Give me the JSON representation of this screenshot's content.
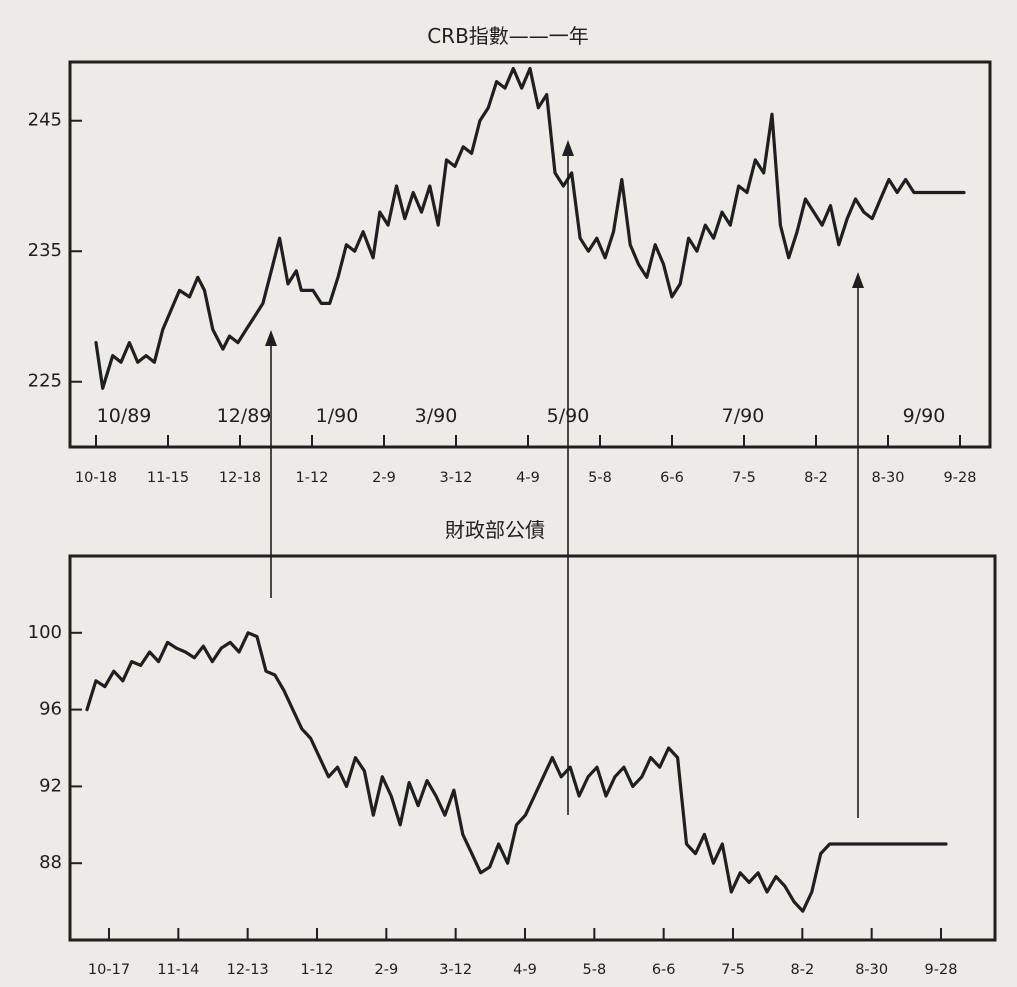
{
  "chart_data": [
    {
      "type": "line",
      "title": "CRB指數——一年",
      "yticks": [
        225,
        235,
        245
      ],
      "ylim": [
        220,
        249.5
      ],
      "xticks": [
        "10-18",
        "11-15",
        "12-18",
        "1-12",
        "2-9",
        "3-12",
        "4-9",
        "5-8",
        "6-6",
        "7-5",
        "8-2",
        "8-30",
        "9-28"
      ],
      "month_labels": [
        "10/89",
        "12/89",
        "1/90",
        "3/90",
        "5/90",
        "7/90",
        "9/90"
      ],
      "grid": false,
      "series": [
        {
          "x": [
            0.0,
            0.4,
            1.0,
            1.5,
            2.0,
            2.5,
            3.0,
            3.5,
            4.0,
            4.5,
            5.0,
            5.6,
            6.1,
            6.5,
            7.0,
            7.6,
            8.0,
            8.5,
            9.0,
            9.5,
            10.0,
            10.5,
            11.0,
            11.5,
            12.0,
            12.3,
            13.0,
            13.5,
            14.0,
            14.5,
            15.0,
            15.5,
            16.0,
            16.6,
            17.0,
            17.5,
            18.0,
            18.5,
            19.0,
            19.5,
            20.0,
            20.5,
            21.0,
            21.5,
            22.0,
            22.5,
            23.0,
            23.5,
            24.0,
            24.5,
            25.0,
            25.5,
            26.0,
            26.5,
            27.0,
            27.5,
            28.0,
            28.5,
            29.0,
            29.5,
            30.0,
            30.5,
            31.0,
            31.5,
            32.0,
            32.5,
            33.0,
            33.5,
            34.0,
            34.5,
            35.0,
            35.5,
            36.0,
            36.5,
            37.0,
            37.5,
            38.0,
            38.5,
            39.0,
            39.5,
            40.0,
            40.5,
            41.0,
            41.5,
            42.0,
            42.5,
            43.0,
            43.5,
            44.0,
            44.5,
            45.0,
            45.5,
            46.0,
            46.5,
            47.0,
            47.5,
            48.0,
            48.5,
            49.0,
            49.5,
            50.0,
            50.5,
            51.0,
            51.5,
            52.0
          ],
          "values": [
            228,
            224.5,
            227,
            226.5,
            228,
            226.5,
            227,
            226.5,
            229,
            230.5,
            232,
            231.5,
            233,
            232,
            229,
            227.5,
            228.5,
            228,
            229,
            230,
            231,
            233.5,
            236,
            232.5,
            233.5,
            232,
            232,
            231,
            231,
            233,
            235.5,
            235,
            236.5,
            234.5,
            238,
            237,
            240,
            237.5,
            239.5,
            238,
            240,
            237,
            242,
            241.5,
            243,
            242.5,
            245,
            246,
            248,
            247.5,
            249,
            247.5,
            249,
            246,
            247,
            241,
            240,
            241,
            236,
            235,
            236,
            234.5,
            236.5,
            240.5,
            235.5,
            234,
            233,
            235.5,
            234,
            231.5,
            232.5,
            236,
            235,
            237,
            236,
            238,
            237,
            240,
            239.5,
            242,
            241,
            245.5,
            237,
            234.5,
            236.5,
            239,
            238,
            237,
            238.5,
            235.5,
            237.5,
            239,
            238,
            237.5,
            239,
            240.5,
            239.5,
            240.5,
            239.5,
            239.5,
            239.5,
            239.5,
            239.5,
            239.5,
            239.5
          ]
        }
      ]
    },
    {
      "type": "line",
      "title": "財政部公債",
      "yticks": [
        88,
        92,
        96,
        100
      ],
      "ylim": [
        84,
        104
      ],
      "xticks": [
        "10-17",
        "11-14",
        "12-13",
        "1-12",
        "2-9",
        "3-12",
        "4-9",
        "5-8",
        "6-6",
        "7-5",
        "8-2",
        "8-30",
        "9-28"
      ],
      "grid": false,
      "series": [
        {
          "x": [
            0.0,
            0.5,
            1.0,
            1.5,
            2.0,
            2.5,
            3.0,
            3.5,
            4.0,
            4.5,
            5.0,
            5.5,
            6.0,
            6.5,
            7.0,
            7.5,
            8.0,
            8.5,
            9.0,
            9.5,
            10.0,
            10.5,
            11.0,
            11.5,
            12.0,
            12.5,
            13.0,
            13.5,
            14.0,
            14.5,
            15.0,
            15.5,
            16.0,
            16.5,
            17.0,
            17.5,
            18.0,
            18.5,
            19.0,
            19.5,
            20.0,
            20.5,
            21.0,
            21.5,
            22.0,
            22.5,
            23.0,
            23.5,
            24.0,
            24.5,
            25.0,
            25.5,
            26.0,
            26.5,
            27.0,
            27.5,
            28.0,
            28.5,
            29.0,
            29.5,
            30.0,
            30.5,
            31.0,
            31.5,
            32.0,
            32.5,
            33.0,
            33.5,
            34.0,
            34.5,
            35.0,
            35.5,
            36.0,
            36.5,
            37.0,
            37.5,
            38.0,
            38.5,
            39.0,
            39.5,
            40.0,
            40.5,
            41.0,
            41.5,
            42.0,
            42.5,
            43.0,
            43.5,
            44.0,
            44.5,
            45.0,
            45.5,
            46.0,
            46.5,
            47.0,
            47.5,
            48.0
          ],
          "values": [
            96,
            97.5,
            97.2,
            98,
            97.5,
            98.5,
            98.3,
            99,
            98.5,
            99.5,
            99.2,
            99,
            98.7,
            99.3,
            98.5,
            99.2,
            99.5,
            99,
            100,
            99.8,
            98,
            97.8,
            97,
            96,
            95,
            94.5,
            93.5,
            92.5,
            93,
            92,
            93.5,
            92.8,
            90.5,
            92.5,
            91.5,
            90,
            92.2,
            91,
            92.3,
            91.5,
            90.5,
            91.8,
            89.5,
            88.5,
            87.5,
            87.8,
            89,
            88,
            90,
            90.5,
            91.5,
            92.5,
            93.5,
            92.5,
            93,
            91.5,
            92.5,
            93,
            91.5,
            92.5,
            93,
            92,
            92.5,
            93.5,
            93,
            94,
            93.5,
            89,
            88.5,
            89.5,
            88,
            89,
            86.5,
            87.5,
            87,
            87.5,
            86.5,
            87.3,
            86.8,
            86,
            85.5,
            86.5,
            88.5,
            89,
            89,
            89,
            89,
            89,
            89,
            89,
            89,
            89,
            89,
            89,
            89,
            89,
            89
          ]
        }
      ]
    }
  ]
}
